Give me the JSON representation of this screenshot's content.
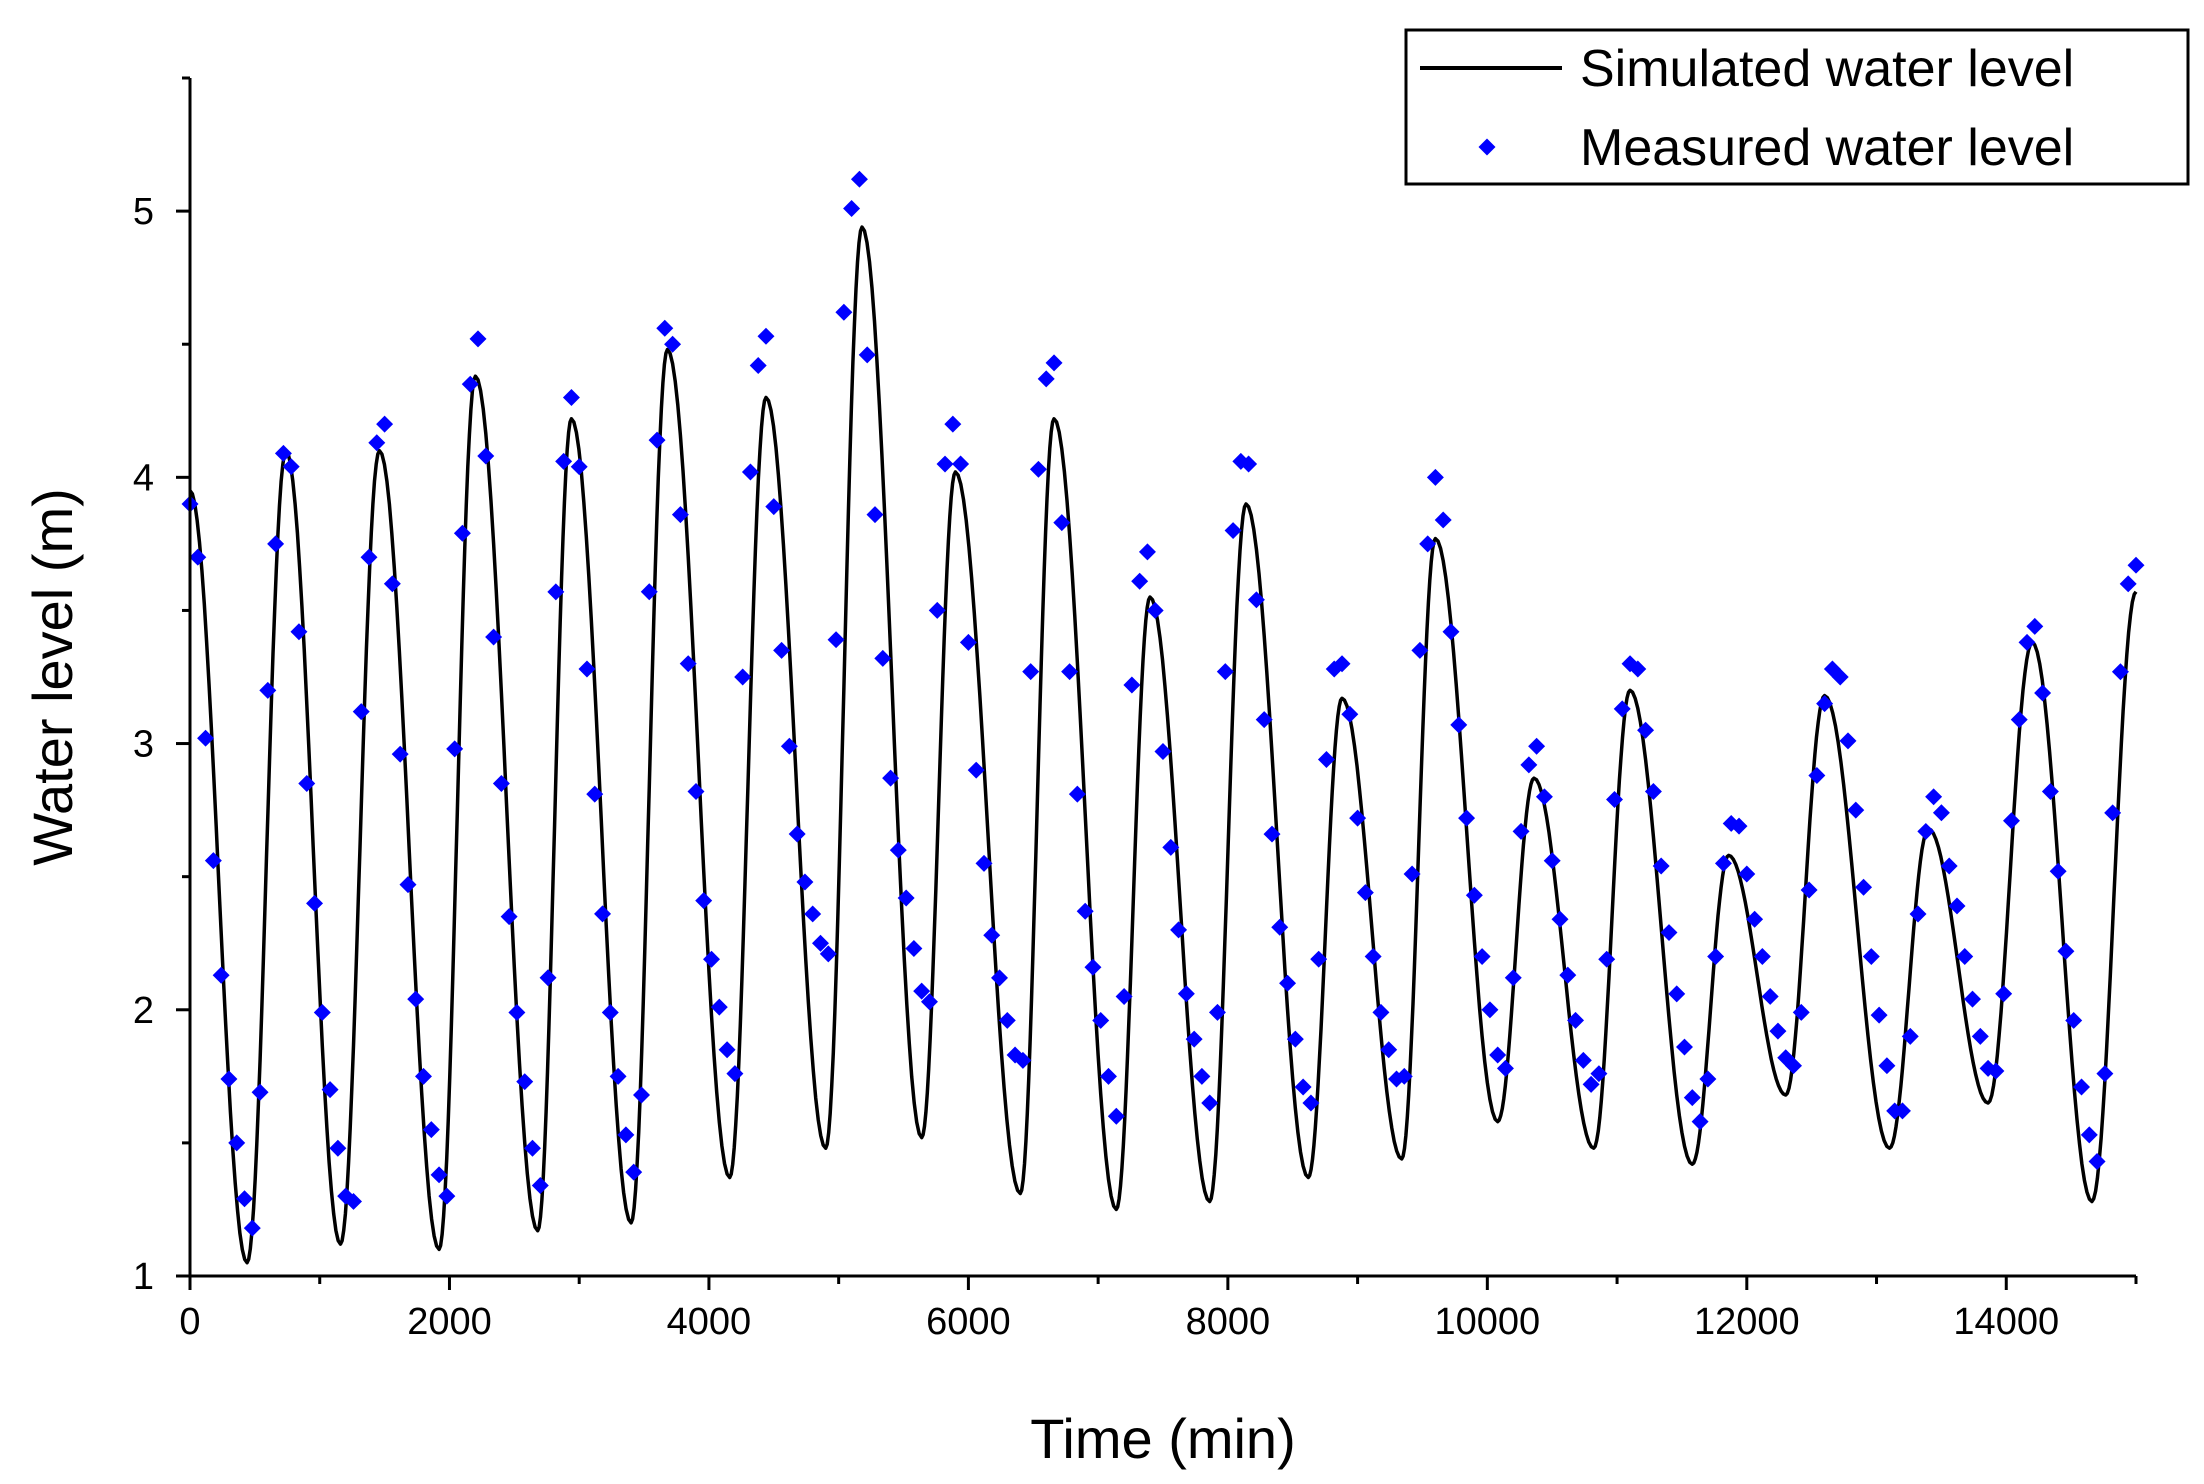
{
  "chart_data": {
    "type": "line",
    "title": "",
    "xlabel": "Time (min)",
    "ylabel": "Water level (m)",
    "xlim": [
      0,
      15000
    ],
    "ylim": [
      1,
      5.5
    ],
    "xticks": [
      0,
      2000,
      4000,
      6000,
      8000,
      10000,
      12000,
      14000
    ],
    "xtick_labels": [
      "0",
      "2000",
      "4000",
      "6000",
      "8000",
      "10000",
      "12000",
      "14000"
    ],
    "yticks": [
      1,
      2,
      3,
      4,
      5
    ],
    "ytick_labels": [
      "1",
      "2",
      "3",
      "4",
      "5"
    ],
    "grid": false,
    "legend": {
      "position": "top-right"
    },
    "series": [
      {
        "name": "Simulated water level",
        "kind": "line",
        "color": "#000000",
        "x": [
          0,
          440,
          740,
          1160,
          1460,
          1920,
          2200,
          2680,
          2940,
          3400,
          3680,
          4160,
          4440,
          4900,
          5180,
          5640,
          5900,
          6400,
          6660,
          7140,
          7400,
          7860,
          8140,
          8620,
          8880,
          9340,
          9600,
          10080,
          10360,
          10820,
          11100,
          11580,
          11860,
          12300,
          12600,
          13100,
          13400,
          13860,
          14200,
          14660,
          15000
        ],
        "y": [
          3.95,
          1.05,
          4.1,
          1.12,
          4.1,
          1.1,
          4.38,
          1.17,
          4.22,
          1.2,
          4.48,
          1.37,
          4.3,
          1.48,
          4.94,
          1.52,
          4.02,
          1.31,
          4.22,
          1.25,
          3.55,
          1.28,
          3.9,
          1.37,
          3.17,
          1.44,
          3.77,
          1.58,
          2.87,
          1.48,
          3.2,
          1.42,
          2.58,
          1.68,
          3.18,
          1.48,
          2.68,
          1.65,
          3.38,
          1.28,
          3.57
        ]
      },
      {
        "name": "Measured water level",
        "kind": "scatter",
        "color": "#0000ff",
        "x": [
          0,
          60,
          120,
          180,
          240,
          300,
          360,
          420,
          480,
          540,
          600,
          660,
          720,
          780,
          840,
          900,
          960,
          1020,
          1080,
          1140,
          1200,
          1260,
          1320,
          1380,
          1440,
          1500,
          1560,
          1620,
          1680,
          1740,
          1800,
          1860,
          1920,
          1980,
          2040,
          2100,
          2160,
          2220,
          2280,
          2340,
          2400,
          2460,
          2520,
          2580,
          2640,
          2700,
          2760,
          2820,
          2880,
          2940,
          3000,
          3060,
          3120,
          3180,
          3240,
          3300,
          3360,
          3420,
          3480,
          3540,
          3600,
          3660,
          3720,
          3780,
          3840,
          3900,
          3960,
          4020,
          4080,
          4140,
          4200,
          4260,
          4320,
          4380,
          4440,
          4500,
          4560,
          4620,
          4680,
          4740,
          4800,
          4860,
          4920,
          4980,
          5040,
          5100,
          5160,
          5220,
          5280,
          5340,
          5400,
          5460,
          5520,
          5580,
          5640,
          5700,
          5760,
          5820,
          5880,
          5940,
          6000,
          6060,
          6120,
          6180,
          6240,
          6300,
          6360,
          6420,
          6480,
          6540,
          6600,
          6660,
          6720,
          6780,
          6840,
          6900,
          6960,
          7020,
          7080,
          7140,
          7200,
          7260,
          7320,
          7380,
          7440,
          7500,
          7560,
          7620,
          7680,
          7740,
          7800,
          7860,
          7920,
          7980,
          8040,
          8100,
          8160,
          8220,
          8280,
          8340,
          8400,
          8460,
          8520,
          8580,
          8640,
          8700,
          8760,
          8820,
          8880,
          8940,
          9000,
          9060,
          9120,
          9180,
          9240,
          9300,
          9360,
          9420,
          9480,
          9540,
          9600,
          9660,
          9720,
          9780,
          9840,
          9900,
          9960,
          10020,
          10080,
          10140,
          10200,
          10260,
          10320,
          10380,
          10440,
          10500,
          10560,
          10620,
          10680,
          10740,
          10800,
          10860,
          10920,
          10980,
          11040,
          11100,
          11160,
          11220,
          11280,
          11340,
          11400,
          11460,
          11520,
          11580,
          11640,
          11700,
          11760,
          11820,
          11880,
          11940,
          12000,
          12060,
          12120,
          12180,
          12240,
          12300,
          12360,
          12420,
          12480,
          12540,
          12600,
          12660,
          12720,
          12780,
          12840,
          12900,
          12960,
          13020,
          13080,
          13140,
          13200,
          13260,
          13320,
          13380,
          13440,
          13500,
          13560,
          13620,
          13680,
          13740,
          13800,
          13860,
          13920,
          13980,
          14040,
          14100,
          14160,
          14220,
          14280,
          14340,
          14400,
          14460,
          14520,
          14580,
          14640,
          14700,
          14760,
          14820,
          14880,
          14940,
          15000
        ],
        "y": [
          3.9,
          3.7,
          3.02,
          2.56,
          2.13,
          1.74,
          1.5,
          1.29,
          1.18,
          1.69,
          3.2,
          3.75,
          4.09,
          4.04,
          3.42,
          2.85,
          2.4,
          1.99,
          1.7,
          1.48,
          1.3,
          1.28,
          3.12,
          3.7,
          4.13,
          4.2,
          3.6,
          2.96,
          2.47,
          2.04,
          1.75,
          1.55,
          1.38,
          1.3,
          2.98,
          3.79,
          4.35,
          4.52,
          4.08,
          3.4,
          2.85,
          2.35,
          1.99,
          1.73,
          1.48,
          1.34,
          2.12,
          3.57,
          4.06,
          4.3,
          4.04,
          3.28,
          2.81,
          2.36,
          1.99,
          1.75,
          1.53,
          1.39,
          1.68,
          3.57,
          4.14,
          4.56,
          4.5,
          3.86,
          3.3,
          2.82,
          2.41,
          2.19,
          2.01,
          1.85,
          1.76,
          3.25,
          4.02,
          4.42,
          4.53,
          3.89,
          3.35,
          2.99,
          2.66,
          2.48,
          2.36,
          2.25,
          2.21,
          3.39,
          4.62,
          5.01,
          5.12,
          4.46,
          3.86,
          3.32,
          2.87,
          2.6,
          2.42,
          2.23,
          2.07,
          2.03,
          3.5,
          4.05,
          4.2,
          4.05,
          3.38,
          2.9,
          2.55,
          2.28,
          2.12,
          1.96,
          1.83,
          1.81,
          3.27,
          4.03,
          4.37,
          4.43,
          3.83,
          3.27,
          2.81,
          2.37,
          2.16,
          1.96,
          1.75,
          1.6,
          2.05,
          3.22,
          3.61,
          3.72,
          3.5,
          2.97,
          2.61,
          2.3,
          2.06,
          1.89,
          1.75,
          1.65,
          1.99,
          3.27,
          3.8,
          4.06,
          4.05,
          3.54,
          3.09,
          2.66,
          2.31,
          2.1,
          1.89,
          1.71,
          1.65,
          2.19,
          2.94,
          3.28,
          3.3,
          3.11,
          2.72,
          2.44,
          2.2,
          1.99,
          1.85,
          1.74,
          1.75,
          2.51,
          3.35,
          3.75,
          4.0,
          3.84,
          3.42,
          3.07,
          2.72,
          2.43,
          2.2,
          2.0,
          1.83,
          1.78,
          2.12,
          2.67,
          2.92,
          2.99,
          2.8,
          2.56,
          2.34,
          2.13,
          1.96,
          1.81,
          1.72,
          1.76,
          2.19,
          2.79,
          3.13,
          3.3,
          3.28,
          3.05,
          2.82,
          2.54,
          2.29,
          2.06,
          1.86,
          1.67,
          1.58,
          1.74,
          2.2,
          2.55,
          2.7,
          2.69,
          2.51,
          2.34,
          2.2,
          2.05,
          1.92,
          1.82,
          1.79,
          1.99,
          2.45,
          2.88,
          3.15,
          3.28,
          3.25,
          3.01,
          2.75,
          2.46,
          2.2,
          1.98,
          1.79,
          1.62,
          1.62,
          1.9,
          2.36,
          2.67,
          2.8,
          2.74,
          2.54,
          2.39,
          2.2,
          2.04,
          1.9,
          1.78,
          1.77,
          2.06,
          2.71,
          3.09,
          3.38,
          3.44,
          3.19,
          2.82,
          2.52,
          2.22,
          1.96,
          1.71,
          1.53,
          1.43,
          1.76,
          2.74,
          3.27,
          3.6,
          3.67
        ]
      }
    ]
  }
}
